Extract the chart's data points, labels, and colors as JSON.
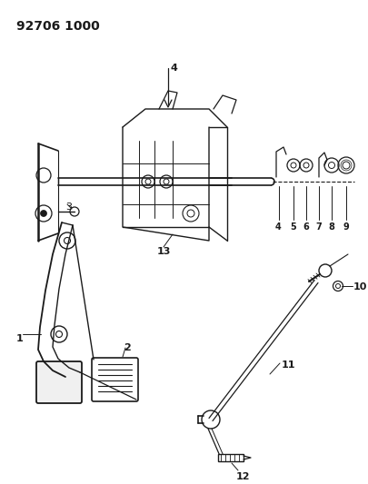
{
  "title": "92706 1000",
  "bg_color": "#ffffff",
  "line_color": "#1a1a1a",
  "title_fontsize": 10,
  "label_fontsize": 8,
  "fig_width": 4.05,
  "fig_height": 5.33,
  "dpi": 100
}
